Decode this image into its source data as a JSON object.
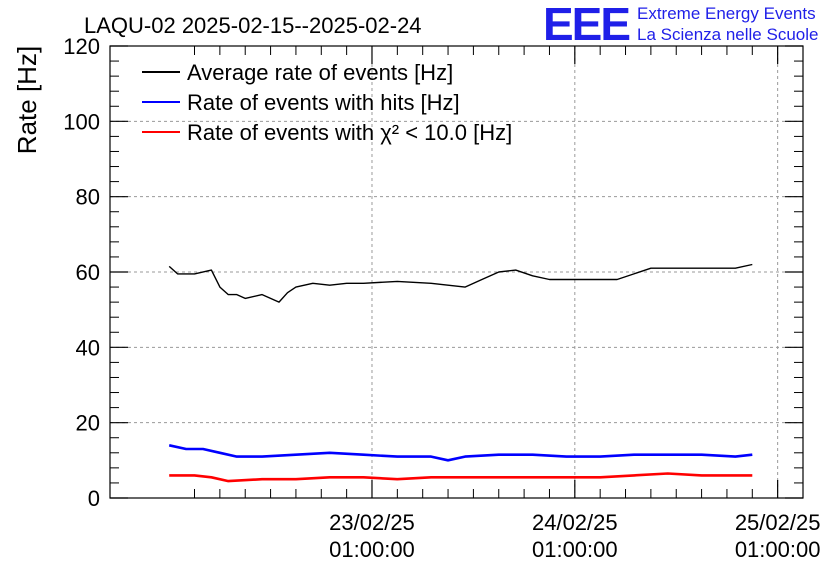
{
  "title": "LAQU-02 2025-02-15--2025-02-24",
  "logo": {
    "mark": "EEE",
    "line1": "Extreme Energy Events",
    "line2": "La Scienza nelle Scuole"
  },
  "chart_data": {
    "type": "line",
    "title": "LAQU-02 2025-02-15--2025-02-24",
    "ylabel": "Rate [Hz]",
    "xlabel": "",
    "ylim": [
      0,
      120
    ],
    "yticks": [
      0,
      20,
      40,
      60,
      80,
      100,
      120
    ],
    "xlim": [
      "2025-02-21T18:00",
      "2025-02-25T04:00"
    ],
    "xticks": [
      {
        "x": "2025-02-23T01:00",
        "date": "23/02/25",
        "time": "01:00:00"
      },
      {
        "x": "2025-02-24T01:00",
        "date": "24/02/25",
        "time": "01:00:00"
      },
      {
        "x": "2025-02-25T01:00",
        "date": "25/02/25",
        "time": "01:00:00"
      }
    ],
    "grid": true,
    "legend_position": "top-left",
    "series": [
      {
        "name": "Average rate of events [Hz]",
        "color": "#000000",
        "x": [
          "2025-02-22T01:00",
          "2025-02-22T02:00",
          "2025-02-22T04:00",
          "2025-02-22T06:00",
          "2025-02-22T07:00",
          "2025-02-22T08:00",
          "2025-02-22T09:00",
          "2025-02-22T10:00",
          "2025-02-22T12:00",
          "2025-02-22T14:00",
          "2025-02-22T15:00",
          "2025-02-22T16:00",
          "2025-02-22T18:00",
          "2025-02-22T20:00",
          "2025-02-22T22:00",
          "2025-02-23T00:00",
          "2025-02-23T04:00",
          "2025-02-23T08:00",
          "2025-02-23T12:00",
          "2025-02-23T14:00",
          "2025-02-23T16:00",
          "2025-02-23T18:00",
          "2025-02-23T20:00",
          "2025-02-23T22:00",
          "2025-02-24T02:00",
          "2025-02-24T06:00",
          "2025-02-24T10:00",
          "2025-02-24T12:00",
          "2025-02-24T16:00",
          "2025-02-24T20:00",
          "2025-02-24T22:00"
        ],
        "values": [
          61.5,
          59.5,
          59.5,
          60.5,
          56,
          54,
          54,
          53,
          54,
          52,
          54.5,
          56,
          57,
          56.5,
          57,
          57,
          57.5,
          57,
          56,
          58,
          60,
          60.5,
          59,
          58,
          58,
          58,
          61,
          61,
          61,
          61,
          62
        ]
      },
      {
        "name": "Rate of events with hits [Hz]",
        "color": "#0000ff",
        "x": [
          "2025-02-22T01:00",
          "2025-02-22T03:00",
          "2025-02-22T05:00",
          "2025-02-22T07:00",
          "2025-02-22T09:00",
          "2025-02-22T12:00",
          "2025-02-22T16:00",
          "2025-02-22T20:00",
          "2025-02-23T00:00",
          "2025-02-23T04:00",
          "2025-02-23T08:00",
          "2025-02-23T10:00",
          "2025-02-23T12:00",
          "2025-02-23T16:00",
          "2025-02-23T20:00",
          "2025-02-24T00:00",
          "2025-02-24T04:00",
          "2025-02-24T08:00",
          "2025-02-24T12:00",
          "2025-02-24T16:00",
          "2025-02-24T20:00",
          "2025-02-24T22:00"
        ],
        "values": [
          14,
          13,
          13,
          12,
          11,
          11,
          11.5,
          12,
          11.5,
          11,
          11,
          10,
          11,
          11.5,
          11.5,
          11,
          11,
          11.5,
          11.5,
          11.5,
          11,
          11.5
        ]
      },
      {
        "name": "Rate of events with χ² < 10.0 [Hz]",
        "color": "#ff0000",
        "x": [
          "2025-02-22T01:00",
          "2025-02-22T04:00",
          "2025-02-22T06:00",
          "2025-02-22T08:00",
          "2025-02-22T12:00",
          "2025-02-22T16:00",
          "2025-02-22T20:00",
          "2025-02-23T00:00",
          "2025-02-23T04:00",
          "2025-02-23T08:00",
          "2025-02-23T12:00",
          "2025-02-23T16:00",
          "2025-02-23T20:00",
          "2025-02-24T00:00",
          "2025-02-24T04:00",
          "2025-02-24T08:00",
          "2025-02-24T12:00",
          "2025-02-24T16:00",
          "2025-02-24T20:00",
          "2025-02-24T22:00"
        ],
        "values": [
          6,
          6,
          5.5,
          4.5,
          5,
          5,
          5.5,
          5.5,
          5,
          5.5,
          5.5,
          5.5,
          5.5,
          5.5,
          5.5,
          6,
          6.5,
          6,
          6,
          6
        ]
      }
    ]
  }
}
